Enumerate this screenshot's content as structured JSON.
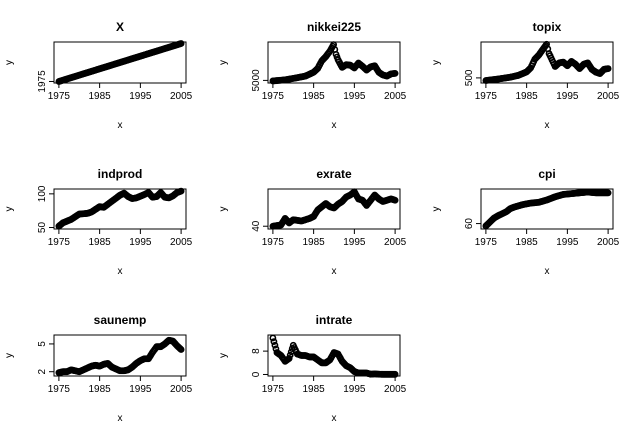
{
  "chart_data": [
    {
      "type": "scatter",
      "title": "X",
      "xlabel": "x",
      "ylabel": "y",
      "xlim": [
        1975,
        2005
      ],
      "ylim": [
        1975,
        2005
      ],
      "x_ticks": [
        1975,
        1985,
        1995,
        2005
      ],
      "y_ticks": [
        1975
      ],
      "series": [
        {
          "x": [
            1975,
            1980,
            1985,
            1990,
            1995,
            2000,
            2005
          ],
          "y": [
            1975,
            1980,
            1985,
            1990,
            1995,
            2000,
            2005
          ]
        }
      ]
    },
    {
      "type": "scatter",
      "title": "nikkei225",
      "xlabel": "x",
      "ylabel": "y",
      "xlim": [
        1975,
        2005
      ],
      "ylim": [
        4000,
        39000
      ],
      "x_ticks": [
        1975,
        1985,
        1995,
        2005
      ],
      "y_ticks": [
        5000
      ],
      "series": [
        {
          "x": [
            1975,
            1978,
            1981,
            1983,
            1985,
            1986,
            1987,
            1988,
            1989,
            1989.9,
            1990.5,
            1991,
            1992,
            1993,
            1994,
            1995,
            1996,
            1997,
            1998,
            1999,
            2000,
            2001,
            2002,
            2003,
            2004,
            2005
          ],
          "y": [
            4500,
            5500,
            7500,
            9000,
            12500,
            16000,
            23000,
            27000,
            32000,
            38000,
            29000,
            24000,
            17000,
            19500,
            19000,
            16500,
            21000,
            18000,
            14500,
            17500,
            18500,
            12500,
            10000,
            9000,
            11000,
            11500
          ]
        }
      ]
    },
    {
      "type": "scatter",
      "title": "topix",
      "xlabel": "x",
      "ylabel": "y",
      "xlim": [
        1975,
        2005
      ],
      "ylim": [
        250,
        2900
      ],
      "x_ticks": [
        1975,
        1985,
        1995,
        2005
      ],
      "y_ticks": [
        500
      ],
      "series": [
        {
          "x": [
            1975,
            1978,
            1981,
            1983,
            1985,
            1986,
            1987,
            1988,
            1989,
            1989.9,
            1990.5,
            1991,
            1992,
            1993,
            1994,
            1995,
            1996,
            1997,
            1998,
            1999,
            2000,
            2001,
            2002,
            2003,
            2004,
            2005
          ],
          "y": [
            320,
            420,
            550,
            680,
            920,
            1200,
            1800,
            2100,
            2500,
            2850,
            2200,
            1900,
            1300,
            1550,
            1600,
            1350,
            1650,
            1450,
            1150,
            1450,
            1550,
            1100,
            900,
            800,
            1100,
            1150
          ]
        }
      ]
    },
    {
      "type": "scatter",
      "title": "indprod",
      "xlabel": "x",
      "ylabel": "y",
      "xlim": [
        1975,
        2005
      ],
      "ylim": [
        50,
        105
      ],
      "x_ticks": [
        1975,
        1985,
        1995,
        2005
      ],
      "y_ticks": [
        50,
        100
      ],
      "series": [
        {
          "x": [
            1975,
            1976,
            1978,
            1980,
            1982,
            1983,
            1985,
            1986,
            1988,
            1990,
            1991,
            1992,
            1993,
            1994,
            1996,
            1997,
            1998,
            1999,
            2000,
            2001,
            2002,
            2003,
            2004,
            2005
          ],
          "y": [
            52,
            57,
            62,
            70,
            71,
            73,
            81,
            80,
            89,
            98,
            101,
            96,
            93,
            94,
            99,
            102,
            95,
            96,
            102,
            95,
            94,
            97,
            102,
            104
          ]
        }
      ]
    },
    {
      "type": "scatter",
      "title": "exrate",
      "xlabel": "x",
      "ylabel": "y",
      "xlim": [
        1975,
        2005
      ],
      "ylim": [
        38,
        95
      ],
      "x_ticks": [
        1975,
        1985,
        1995,
        2005
      ],
      "y_ticks": [
        40
      ],
      "series": [
        {
          "x": [
            1975,
            1977,
            1978,
            1979,
            1980,
            1982,
            1984,
            1985,
            1986,
            1987,
            1988,
            1989,
            1990,
            1991,
            1992,
            1993,
            1994,
            1995,
            1996,
            1997,
            1998,
            1999,
            2000,
            2001,
            2002,
            2003,
            2004,
            2005
          ],
          "y": [
            40,
            42,
            52,
            45,
            50,
            48,
            52,
            55,
            65,
            70,
            75,
            70,
            68,
            74,
            78,
            85,
            88,
            93,
            82,
            80,
            72,
            80,
            88,
            82,
            78,
            80,
            82,
            80
          ]
        }
      ]
    },
    {
      "type": "scatter",
      "title": "cpi",
      "xlabel": "x",
      "ylabel": "y",
      "xlim": [
        1975,
        2005
      ],
      "ylim": [
        55,
        102
      ],
      "x_ticks": [
        1975,
        1985,
        1995,
        2005
      ],
      "y_ticks": [
        60
      ],
      "series": [
        {
          "x": [
            1975,
            1976,
            1977,
            1978,
            1980,
            1981,
            1982,
            1984,
            1986,
            1988,
            1990,
            1992,
            1994,
            1996,
            1998,
            2000,
            2002,
            2004,
            2005
          ],
          "y": [
            57,
            62,
            67,
            70,
            75,
            79,
            81,
            84,
            86,
            87,
            90,
            94,
            97,
            98,
            99,
            100,
            99,
            99,
            99
          ]
        }
      ]
    },
    {
      "type": "scatter",
      "title": "saunemp",
      "xlabel": "x",
      "ylabel": "y",
      "xlim": [
        1975,
        2005
      ],
      "ylim": [
        1.7,
        5.8
      ],
      "x_ticks": [
        1975,
        1985,
        1995,
        2005
      ],
      "y_ticks": [
        2,
        5
      ],
      "series": [
        {
          "x": [
            1975,
            1976,
            1977,
            1978,
            1979,
            1980,
            1981,
            1982,
            1983,
            1984,
            1985,
            1986,
            1987,
            1988,
            1989,
            1990,
            1991,
            1992,
            1993,
            1994,
            1995,
            1996,
            1997,
            1998,
            1999,
            2000,
            2001,
            2002,
            2003,
            2004,
            2005
          ],
          "y": [
            1.9,
            2.0,
            2.0,
            2.2,
            2.1,
            2.0,
            2.2,
            2.4,
            2.6,
            2.7,
            2.6,
            2.8,
            2.9,
            2.5,
            2.3,
            2.1,
            2.1,
            2.2,
            2.5,
            2.9,
            3.2,
            3.4,
            3.4,
            4.1,
            4.7,
            4.7,
            5.0,
            5.4,
            5.3,
            4.8,
            4.4
          ]
        }
      ]
    },
    {
      "type": "scatter",
      "title": "intrate",
      "xlabel": "x",
      "ylabel": "y",
      "xlim": [
        1975,
        2005
      ],
      "ylim": [
        0,
        13
      ],
      "x_ticks": [
        1975,
        1985,
        1995,
        2005
      ],
      "y_ticks": [
        0,
        8
      ],
      "series": [
        {
          "x": [
            1975,
            1976,
            1977,
            1978,
            1979,
            1980,
            1980.5,
            1981,
            1982,
            1983,
            1984,
            1985,
            1986,
            1987,
            1988,
            1989,
            1990,
            1991,
            1992,
            1993,
            1994,
            1995,
            1996,
            1997,
            1998,
            1999,
            2000,
            2001,
            2002,
            2003,
            2004,
            2005
          ],
          "y": [
            12.5,
            7.5,
            6.5,
            4.5,
            5.5,
            10,
            8.5,
            7,
            6.5,
            6.5,
            6,
            6,
            5,
            4,
            4,
            5,
            7.5,
            7,
            4.5,
            3,
            2.3,
            1,
            0.5,
            0.5,
            0.5,
            0.1,
            0.2,
            0.1,
            0.05,
            0.05,
            0.05,
            0.05
          ]
        }
      ]
    }
  ]
}
